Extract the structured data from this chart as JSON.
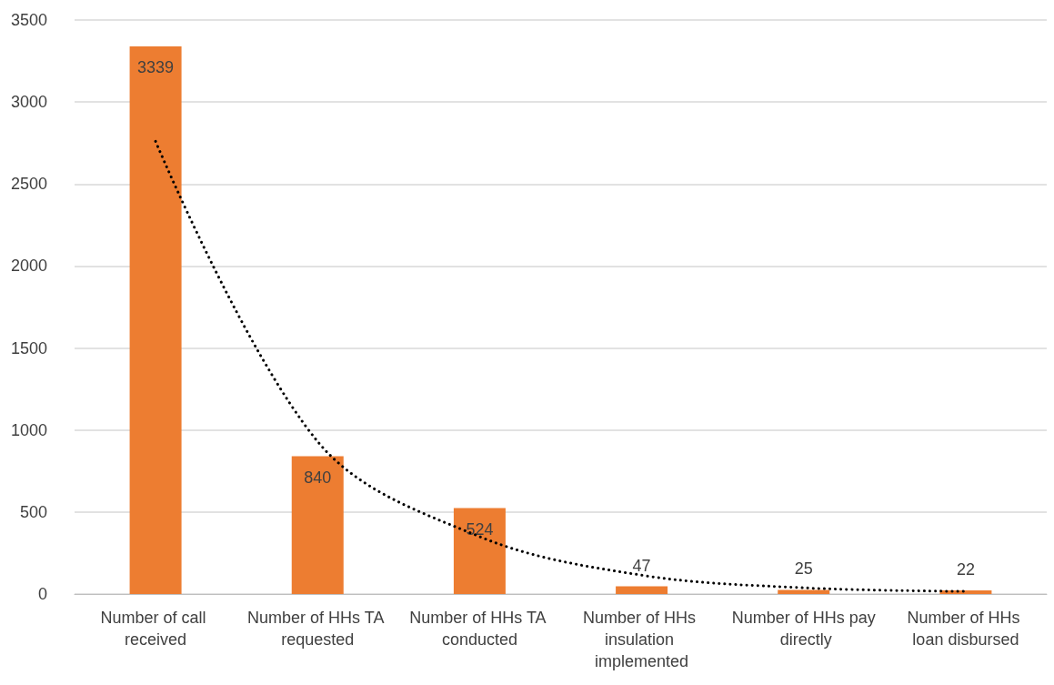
{
  "chart_data": {
    "type": "bar",
    "categories": [
      "Number of call received",
      "Number of HHs TA requested",
      "Number of HHs TA conducted",
      "Number of HHs insulation implemented",
      "Number of HHs pay directly",
      "Number of HHs loan disbursed"
    ],
    "series": [
      {
        "color": "#ed7d31",
        "values": [
          3339,
          840,
          524,
          47,
          25,
          22
        ],
        "value_labels": [
          "3339",
          "840",
          "524",
          "47",
          "25",
          "22"
        ]
      },
      {
        "type": "line",
        "color": "#000000",
        "line_style": "dotted",
        "marker": "none",
        "values": [
          2760,
          930,
          350,
          115,
          38,
          16
        ]
      }
    ],
    "ylim": [
      0,
      3500
    ],
    "yticks": [
      0,
      500,
      1000,
      1500,
      2000,
      2500,
      3000,
      3500
    ],
    "grid": "y"
  }
}
